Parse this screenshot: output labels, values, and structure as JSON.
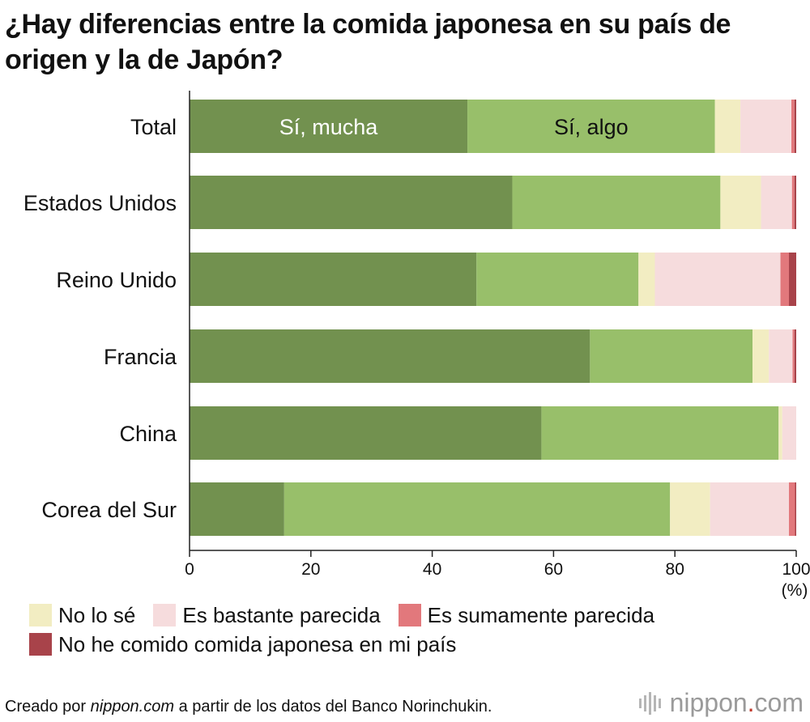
{
  "title": "¿Hay diferencias entre la comida japonesa en su país de origen y la de Japón?",
  "chart_data": {
    "type": "bar",
    "orientation": "horizontal",
    "stacked": true,
    "categories": [
      "Total",
      "Estados Unidos",
      "Reino Unido",
      "Francia",
      "China",
      "Corea del Sur"
    ],
    "series": [
      {
        "name": "Sí, mucha",
        "color": "#72914f",
        "values": [
          45.8,
          53.2,
          47.3,
          66.0,
          58.0,
          15.6
        ]
      },
      {
        "name": "Sí, algo",
        "color": "#98bf6a",
        "values": [
          40.8,
          34.3,
          26.7,
          26.8,
          39.1,
          63.6
        ]
      },
      {
        "name": "No lo sé",
        "color": "#f2edc2",
        "values": [
          4.2,
          6.7,
          2.7,
          2.7,
          0.6,
          6.6
        ]
      },
      {
        "name": "Es bastante parecida",
        "color": "#f6dcdd",
        "values": [
          8.4,
          5.1,
          20.7,
          3.9,
          2.3,
          13.0
        ]
      },
      {
        "name": "Es sumamente parecida",
        "color": "#e2787c",
        "values": [
          0.5,
          0.4,
          1.4,
          0.3,
          0.0,
          1.0
        ]
      },
      {
        "name": "No he comido comida japonesa en mi país",
        "color": "#a8434a",
        "values": [
          0.3,
          0.3,
          1.2,
          0.3,
          0.0,
          0.2
        ]
      }
    ],
    "inline_labels": [
      {
        "text": "Sí, mucha",
        "series": 0,
        "category": 0,
        "color": "#ffffff"
      },
      {
        "text": "Sí, algo",
        "series": 1,
        "category": 0,
        "color": "#111111"
      }
    ],
    "xlim": [
      0,
      100
    ],
    "xticks": [
      "0",
      "20",
      "40",
      "60",
      "80",
      "100"
    ],
    "unit_label": "(%)",
    "grid": false,
    "legend_position": "bottom"
  },
  "legend": [
    {
      "label": "No lo sé",
      "color": "#f2edc2"
    },
    {
      "label": "Es bastante parecida",
      "color": "#f6dcdd"
    },
    {
      "label": "Es sumamente parecida",
      "color": "#e2787c"
    },
    {
      "label": "No he comido comida japonesa en mi país",
      "color": "#a8434a"
    }
  ],
  "footer": {
    "prefix": "Creado por ",
    "site": "nippon.com",
    "suffix": " a partir de los datos del Banco Norinchukin."
  },
  "logo": {
    "name": "nippon",
    "dot": ".",
    "tld": "com"
  }
}
